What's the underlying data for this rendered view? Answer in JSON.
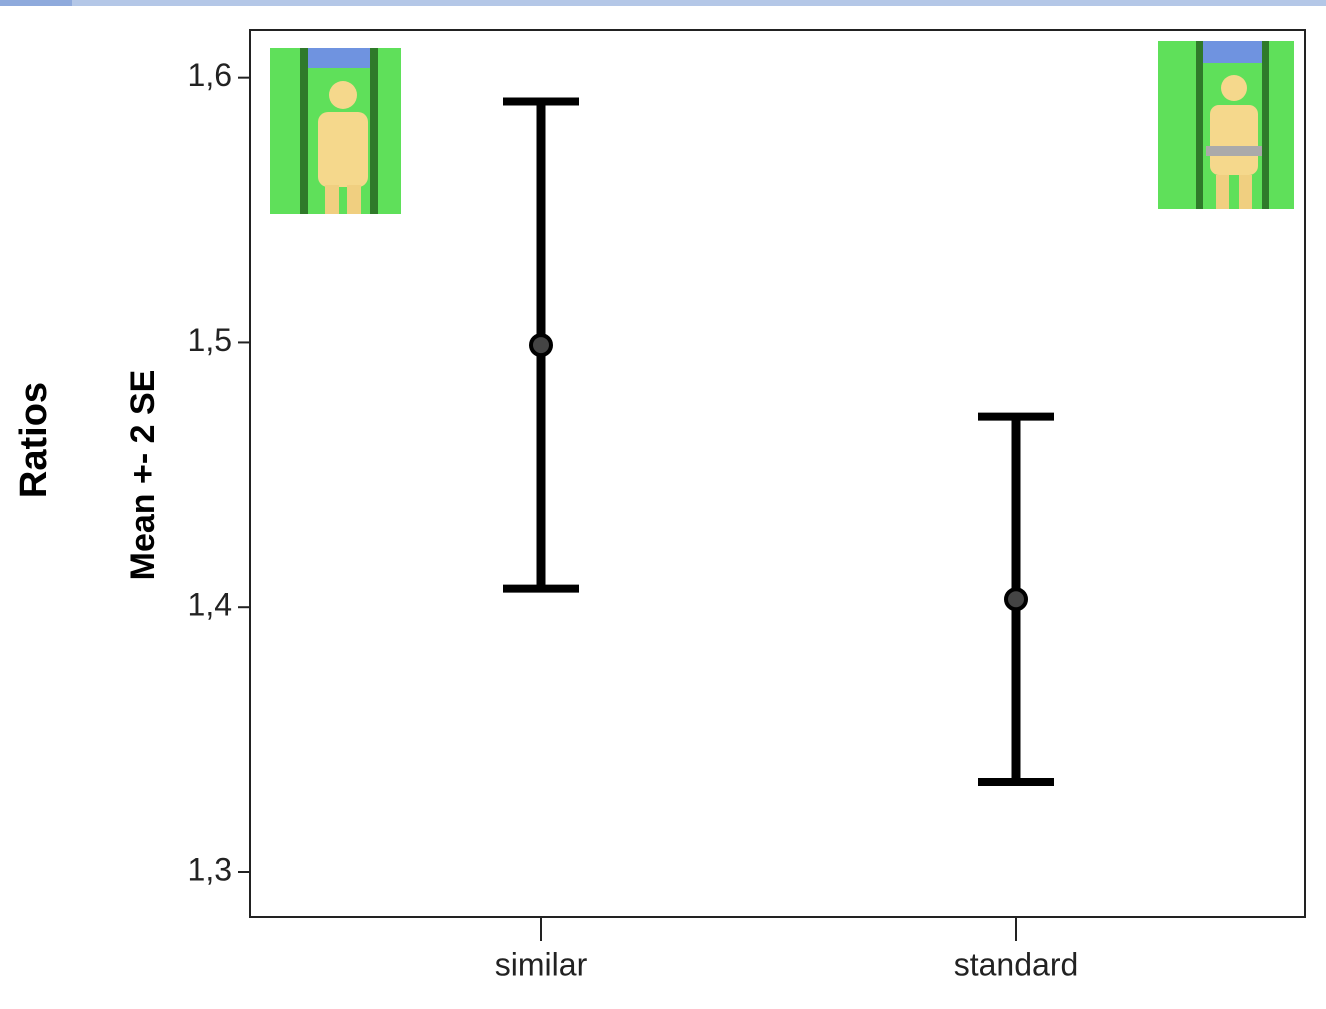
{
  "chart_data": {
    "type": "errorbar",
    "title_left": "Ratios",
    "y_label": "Mean +- 2 SE",
    "categories": [
      "similar",
      "standard"
    ],
    "values": [
      1.499,
      1.403
    ],
    "errors": [
      0.092,
      0.069
    ],
    "color": "#000000",
    "ylim": [
      1.283,
      1.618
    ],
    "yticks": [
      {
        "value": 1.3,
        "label": "1,3"
      },
      {
        "value": 1.4,
        "label": "1,4"
      },
      {
        "value": 1.5,
        "label": "1,5"
      },
      {
        "value": 1.6,
        "label": "1,6"
      }
    ]
  }
}
